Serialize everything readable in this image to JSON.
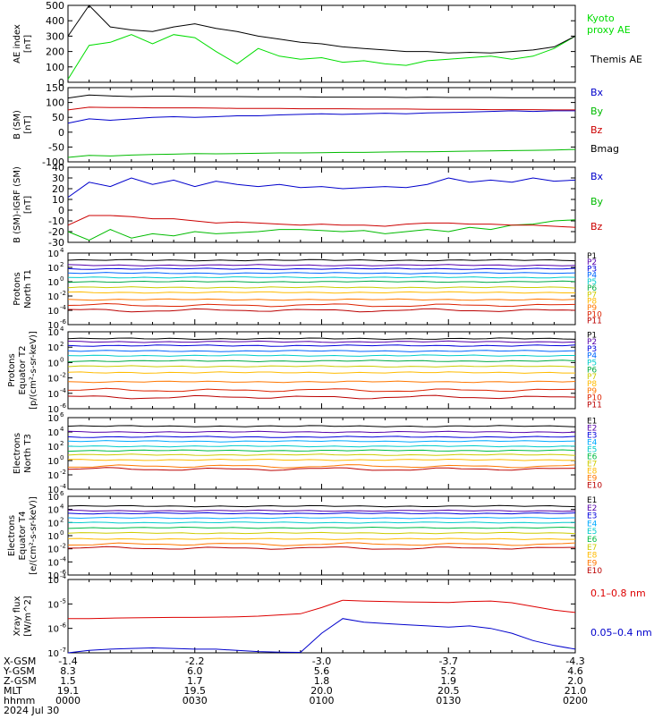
{
  "chart_data": [
    {
      "type": "line",
      "ylabel": "AE index [nT]",
      "ylim": [
        0,
        500
      ],
      "yticks": [
        "0",
        "100",
        "200",
        "300",
        "400",
        "500"
      ],
      "x": [
        0,
        5,
        10,
        15,
        20,
        25,
        30,
        35,
        40,
        45,
        50,
        55,
        60,
        65,
        70,
        75,
        80,
        85,
        90,
        95,
        100,
        105,
        110,
        115,
        120
      ],
      "series": [
        {
          "name": "Kyoto proxy AE",
          "color": "#00dd00",
          "values": [
            20,
            240,
            260,
            310,
            250,
            310,
            290,
            200,
            120,
            220,
            170,
            150,
            160,
            130,
            140,
            120,
            110,
            140,
            150,
            160,
            170,
            150,
            170,
            220,
            300
          ]
        },
        {
          "name": "Themis AE",
          "color": "#000000",
          "values": [
            300,
            500,
            360,
            340,
            330,
            360,
            380,
            350,
            330,
            300,
            280,
            260,
            250,
            230,
            220,
            210,
            200,
            200,
            190,
            195,
            190,
            200,
            210,
            230,
            300
          ]
        }
      ]
    },
    {
      "type": "line",
      "ylabel": "B (SM) [nT]",
      "ylim": [
        -100,
        150
      ],
      "yticks": [
        "-100",
        "-50",
        "0",
        "50",
        "100",
        "150"
      ],
      "series": [
        {
          "name": "Bx",
          "color": "#0000cc",
          "values": [
            30,
            45,
            40,
            45,
            50,
            52,
            50,
            52,
            55,
            55,
            58,
            60,
            62,
            60,
            62,
            64,
            62,
            65,
            66,
            68,
            70,
            72,
            70,
            72,
            72
          ]
        },
        {
          "name": "By",
          "color": "#00bb00",
          "values": [
            -85,
            -78,
            -80,
            -77,
            -75,
            -74,
            -72,
            -73,
            -72,
            -71,
            -70,
            -70,
            -69,
            -68,
            -68,
            -67,
            -66,
            -66,
            -65,
            -64,
            -63,
            -62,
            -61,
            -60,
            -58
          ]
        },
        {
          "name": "Bz",
          "color": "#cc0000",
          "values": [
            75,
            84,
            83,
            83,
            82,
            82,
            82,
            81,
            80,
            80,
            80,
            79,
            79,
            79,
            78,
            78,
            78,
            77,
            77,
            77,
            76,
            76,
            76,
            75,
            75
          ]
        },
        {
          "name": "Bmag",
          "color": "#000000",
          "values": [
            115,
            125,
            122,
            120,
            121,
            121,
            120,
            120,
            120,
            119,
            119,
            119,
            118,
            118,
            118,
            118,
            117,
            118,
            117,
            117,
            117,
            116,
            116,
            116,
            116
          ]
        }
      ]
    },
    {
      "type": "line",
      "ylabel": "B (SM)-IGRF (SM) [nT]",
      "ylim": [
        -30,
        40
      ],
      "yticks": [
        "-30",
        "-20",
        "-10",
        "0",
        "10",
        "20",
        "30",
        "40"
      ],
      "series": [
        {
          "name": "Bx",
          "color": "#0000cc",
          "values": [
            12,
            26,
            22,
            30,
            24,
            28,
            22,
            27,
            24,
            22,
            24,
            21,
            22,
            20,
            21,
            22,
            21,
            24,
            30,
            26,
            28,
            26,
            30,
            27,
            28
          ]
        },
        {
          "name": "By",
          "color": "#00bb00",
          "values": [
            -20,
            -28,
            -18,
            -26,
            -22,
            -24,
            -20,
            -22,
            -21,
            -20,
            -18,
            -18,
            -19,
            -20,
            -19,
            -22,
            -20,
            -18,
            -20,
            -16,
            -18,
            -14,
            -13,
            -10,
            -9
          ]
        },
        {
          "name": "Bz",
          "color": "#cc0000",
          "values": [
            -14,
            -5,
            -5,
            -6,
            -8,
            -8,
            -10,
            -12,
            -11,
            -12,
            -13,
            -14,
            -13,
            -14,
            -14,
            -15,
            -13,
            -12,
            -12,
            -13,
            -13,
            -14,
            -14,
            -15,
            -16
          ]
        }
      ]
    },
    {
      "type": "line",
      "ylabel": "Protons North T1",
      "ylim": [
        -6,
        4
      ],
      "log": true,
      "yticks": [
        "10-6",
        "10-4",
        "10-2",
        "10 0",
        "10 2",
        "10 4"
      ],
      "series_labels": [
        "P1",
        "P2",
        "P3",
        "P4",
        "P5",
        "P6",
        "P7",
        "P8",
        "P9",
        "P10",
        "P11"
      ],
      "series_colors": [
        "#000000",
        "#5500aa",
        "#0000dd",
        "#0066ff",
        "#00cccc",
        "#00aa44",
        "#cccc00",
        "#ffbb00",
        "#ff7700",
        "#dd2200",
        "#bb0000"
      ],
      "log_levels": [
        3.0,
        2.3,
        1.8,
        1.2,
        0.6,
        0.0,
        -0.8,
        -1.5,
        -2.5,
        -3.3,
        -4.0
      ]
    },
    {
      "type": "line",
      "ylabel": "Protons Equator T2 [p/(cm²-s-sr-keV)]",
      "ylim": [
        -6,
        4
      ],
      "log": true,
      "yticks": [
        "10-6",
        "10-4",
        "10-2",
        "10 0",
        "10 2",
        "10 4"
      ],
      "series_labels": [
        "P1",
        "P2",
        "P3",
        "P4",
        "P5",
        "P6",
        "P7",
        "P8",
        "P9",
        "P10",
        "P11"
      ],
      "series_colors": [
        "#000000",
        "#5500aa",
        "#0000dd",
        "#0066ff",
        "#00cccc",
        "#00aa44",
        "#cccc00",
        "#ffbb00",
        "#ff7700",
        "#dd2200",
        "#bb0000"
      ],
      "log_levels": [
        3.1,
        2.7,
        2.2,
        1.5,
        0.9,
        0.2,
        -0.5,
        -1.3,
        -2.5,
        -3.6,
        -4.5
      ]
    },
    {
      "type": "line",
      "ylabel": "Electrons North T3",
      "ylim": [
        -4,
        6
      ],
      "log": true,
      "yticks": [
        "10-4",
        "10-2",
        "10 0",
        "10 2",
        "10 4",
        "10 6"
      ],
      "series_labels": [
        "E1",
        "E2",
        "E3",
        "E4",
        "E5",
        "E6",
        "E7",
        "E8",
        "E9",
        "E10"
      ],
      "series_colors": [
        "#000000",
        "#5500aa",
        "#0000dd",
        "#00aaff",
        "#00cccc",
        "#00bb44",
        "#cccc00",
        "#ffbb00",
        "#ff7700",
        "#bb0000"
      ],
      "log_levels": [
        4.8,
        4.0,
        3.3,
        2.7,
        2.0,
        1.4,
        0.8,
        0.1,
        -0.8,
        -1.2
      ]
    },
    {
      "type": "line",
      "ylabel": "Electrons Equator T4 [e/(cm²-s-sr-keV)]",
      "ylim": [
        -6,
        6
      ],
      "log": true,
      "yticks": [
        "10-6",
        "10-4",
        "10-2",
        "10 0",
        "10 2",
        "10 4",
        "10 6"
      ],
      "series_labels": [
        "E1",
        "E2",
        "E3",
        "E4",
        "E5",
        "E6",
        "E7",
        "E8",
        "E9",
        "E10"
      ],
      "series_colors": [
        "#000000",
        "#5500aa",
        "#0000dd",
        "#00aaff",
        "#00cccc",
        "#00bb44",
        "#cccc00",
        "#ffbb00",
        "#ff7700",
        "#bb0000"
      ],
      "log_levels": [
        4.5,
        3.8,
        3.4,
        2.7,
        2.0,
        1.2,
        0.4,
        -0.5,
        -1.3,
        -1.9
      ]
    },
    {
      "type": "line",
      "ylabel": "Xray flux [W/m^2]",
      "ylim": [
        -7,
        -4
      ],
      "log": true,
      "yticks": [
        "10-7",
        "10-6",
        "10-5",
        "10-4"
      ],
      "x": [
        0,
        5,
        10,
        15,
        20,
        25,
        30,
        35,
        40,
        45,
        50,
        55,
        60,
        65,
        70,
        75,
        80,
        85,
        90,
        95,
        100,
        105,
        110,
        115,
        120
      ],
      "series": [
        {
          "name": "0.1–0.8 nm",
          "color": "#dd0000",
          "log_values": [
            -5.6,
            -5.6,
            -5.58,
            -5.57,
            -5.56,
            -5.55,
            -5.55,
            -5.54,
            -5.53,
            -5.5,
            -5.45,
            -5.4,
            -5.15,
            -4.85,
            -4.88,
            -4.9,
            -4.92,
            -4.93,
            -4.94,
            -4.9,
            -4.88,
            -4.95,
            -5.1,
            -5.25,
            -5.35
          ]
        },
        {
          "name": "0.05–0.4 nm",
          "color": "#0000cc",
          "log_values": [
            -7.0,
            -6.9,
            -6.85,
            -6.82,
            -6.8,
            -6.82,
            -6.85,
            -6.85,
            -6.9,
            -6.95,
            -6.97,
            -6.98,
            -6.2,
            -5.6,
            -5.75,
            -5.8,
            -5.85,
            -5.9,
            -5.95,
            -5.9,
            -6.0,
            -6.2,
            -6.5,
            -6.7,
            -6.85
          ]
        }
      ]
    }
  ],
  "side_labels": {
    "ae": [
      "Kyoto",
      "proxy AE",
      "Themis AE"
    ],
    "b": [
      "Bx",
      "By",
      "Bz",
      "Bmag"
    ],
    "bigrf": [
      "Bx",
      "By",
      "Bz"
    ],
    "xray": [
      "0.1–0.8 nm",
      "0.05–0.4 nm"
    ]
  },
  "ephemeris": {
    "row_labels": [
      "X-GSM",
      "Y-GSM",
      "Z-GSM",
      "MLT",
      "hhmm",
      "2024 Jul 30"
    ],
    "columns": [
      {
        "x": "-1.4",
        "y": "8.3",
        "z": "1.5",
        "mlt": "19.1",
        "hhmm": "0000"
      },
      {
        "x": "-2.2",
        "y": "6.0",
        "z": "1.7",
        "mlt": "19.5",
        "hhmm": "0030"
      },
      {
        "x": "-3.0",
        "y": "5.6",
        "z": "1.8",
        "mlt": "20.0",
        "hhmm": "0100"
      },
      {
        "x": "-3.7",
        "y": "5.2",
        "z": "1.9",
        "mlt": "20.5",
        "hhmm": "0130"
      },
      {
        "x": "-4.3",
        "y": "4.6",
        "z": "2.0",
        "mlt": "21.0",
        "hhmm": "0200"
      }
    ]
  }
}
